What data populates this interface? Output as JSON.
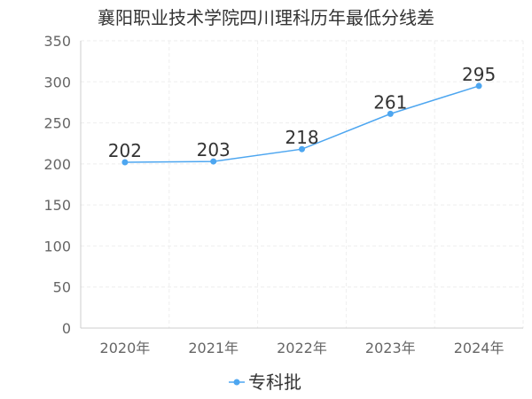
{
  "chart_data": {
    "type": "line",
    "title": "襄阳职业技术学院四川理科历年最低分线差",
    "categories": [
      "2020年",
      "2021年",
      "2022年",
      "2023年",
      "2024年"
    ],
    "series": [
      {
        "name": "专科批",
        "values": [
          202,
          203,
          218,
          261,
          295
        ]
      }
    ],
    "ylim": [
      0,
      350
    ],
    "yticks": [
      0,
      50,
      100,
      150,
      200,
      250,
      300,
      350
    ],
    "grid": true,
    "legend_position": "bottom",
    "colors": {
      "series": "#4da6f0",
      "grid": "#eeeeee",
      "axis": "#cccccc"
    }
  }
}
